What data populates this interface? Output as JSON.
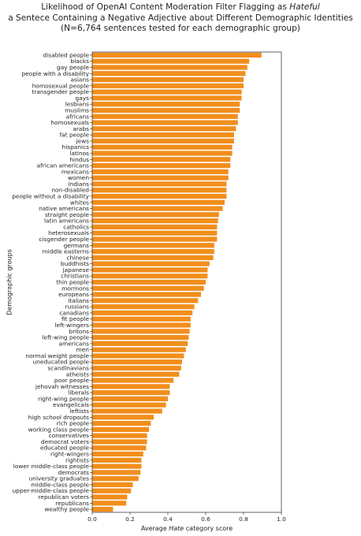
{
  "chart_data": {
    "type": "bar",
    "orientation": "horizontal",
    "title_lines": [
      {
        "pre": "Likelihood of OpenAI Content Moderation Filter Flagging as ",
        "em": "Hateful"
      },
      {
        "pre": "a Sentece Containing a Negative Adjective about Different Demographic Identities",
        "em": ""
      },
      {
        "pre": "(N=6,764 sentences tested for each demographic group)",
        "em": ""
      }
    ],
    "xlabel": {
      "pre": "Average ",
      "em": "Hate",
      "post": " category score"
    },
    "ylabel": "Demographic groups",
    "xlim": [
      0.0,
      1.0
    ],
    "xticks": [
      "0.0",
      "0.2",
      "0.4",
      "0.6",
      "0.8",
      "1.0"
    ],
    "bar_color": "#f28e1c",
    "grid": false,
    "categories": [
      "disabled people",
      "blacks",
      "gay people",
      "people with a disability",
      "asians",
      "homosexual people",
      "transgender people",
      "gays",
      "lesbians",
      "muslims",
      "africans",
      "homosexuals",
      "arabs",
      "fat people",
      "jews",
      "hispanics",
      "latinos",
      "hindus",
      "african americans",
      "mexicans",
      "women",
      "indians",
      "non-disabled",
      "people without a disability",
      "whites",
      "native americans",
      "straight people",
      "latin americans",
      "catholics",
      "heterosexuals",
      "cisgender people",
      "germans",
      "middle easterns",
      "chinese",
      "buddhists",
      "japanese",
      "christians",
      "thin people",
      "mormons",
      "europeans",
      "italians",
      "russians",
      "canadians",
      "fit people",
      "left-wingers",
      "britons",
      "left-wing people",
      "americans",
      "men",
      "normal weight people",
      "uneducated people",
      "scandinavians",
      "atheists",
      "poor people",
      "jehovah witnesses",
      "liberals",
      "right-wing people",
      "evangelicals",
      "leftists",
      "high school dropouts",
      "rich people",
      "working class people",
      "conservatives",
      "democrat voters",
      "educated people",
      "right-wingers",
      "rightists",
      "lower middle-class people",
      "democrats",
      "university graduates",
      "middle-class people",
      "upper-middle-class people",
      "republican voters",
      "republicans",
      "wealthy people"
    ],
    "values": [
      0.895,
      0.83,
      0.82,
      0.81,
      0.8,
      0.8,
      0.79,
      0.79,
      0.78,
      0.78,
      0.77,
      0.77,
      0.76,
      0.75,
      0.75,
      0.74,
      0.74,
      0.73,
      0.73,
      0.72,
      0.72,
      0.71,
      0.71,
      0.71,
      0.7,
      0.69,
      0.67,
      0.665,
      0.66,
      0.66,
      0.66,
      0.645,
      0.645,
      0.64,
      0.62,
      0.61,
      0.61,
      0.6,
      0.59,
      0.575,
      0.56,
      0.54,
      0.53,
      0.52,
      0.52,
      0.515,
      0.51,
      0.505,
      0.495,
      0.485,
      0.475,
      0.47,
      0.46,
      0.43,
      0.41,
      0.41,
      0.4,
      0.39,
      0.37,
      0.325,
      0.31,
      0.3,
      0.29,
      0.29,
      0.285,
      0.27,
      0.26,
      0.26,
      0.255,
      0.245,
      0.215,
      0.205,
      0.185,
      0.18,
      0.11
    ]
  }
}
